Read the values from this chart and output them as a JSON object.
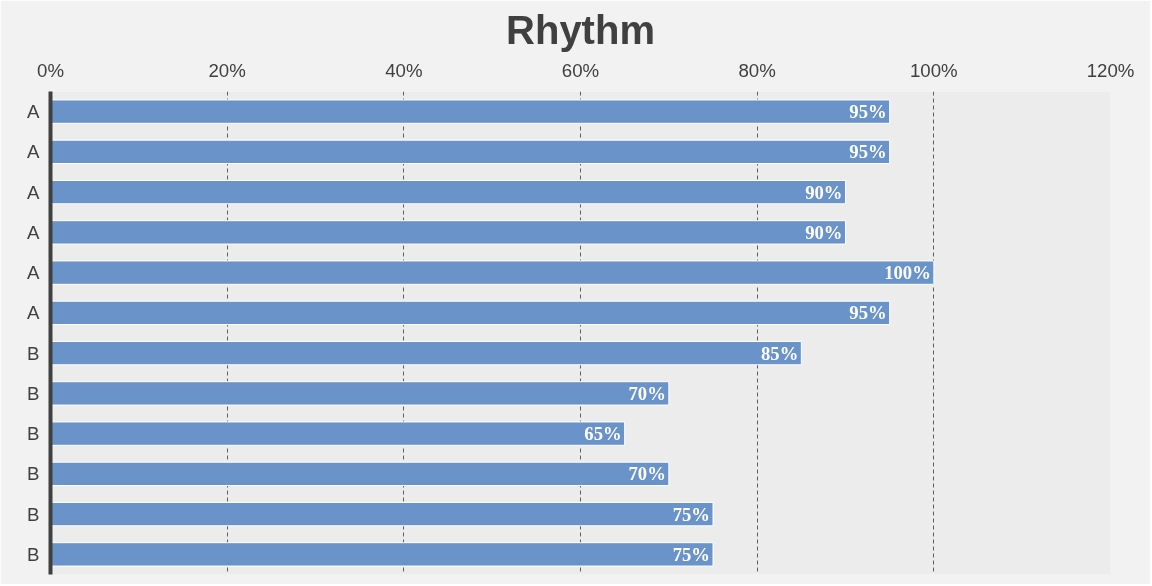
{
  "chart_data": {
    "type": "bar",
    "orientation": "horizontal",
    "title": "Rhythm",
    "categories": [
      "A",
      "A",
      "A",
      "A",
      "A",
      "A",
      "B",
      "B",
      "B",
      "B",
      "B",
      "B"
    ],
    "values": [
      95,
      95,
      90,
      90,
      100,
      95,
      85,
      70,
      65,
      70,
      75,
      75
    ],
    "value_labels": [
      "95%",
      "95%",
      "90%",
      "90%",
      "100%",
      "95%",
      "85%",
      "70%",
      "65%",
      "70%",
      "75%",
      "75%"
    ],
    "color": "#6a93c9",
    "xlim": [
      0,
      120
    ],
    "xticks": [
      {
        "value": 0,
        "label": "0%"
      },
      {
        "value": 20,
        "label": "20%"
      },
      {
        "value": 40,
        "label": "40%"
      },
      {
        "value": 60,
        "label": "60%"
      },
      {
        "value": 80,
        "label": "80%"
      },
      {
        "value": 100,
        "label": "100%"
      },
      {
        "value": 120,
        "label": "120%"
      }
    ],
    "grid": "x"
  }
}
